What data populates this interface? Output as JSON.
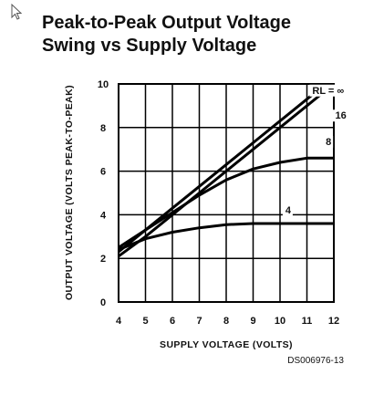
{
  "title_lines": [
    "Peak-to-Peak Output Voltage",
    "Swing vs Supply Voltage"
  ],
  "doc_code": "DS006976-13",
  "chart_data": {
    "type": "line",
    "title": "Peak-to-Peak Output Voltage Swing vs Supply Voltage",
    "xlabel": "SUPPLY VOLTAGE (VOLTS)",
    "ylabel": "OUTPUT VOLTAGE (VOLTS PEAK-TO-PEAK)",
    "xlim": [
      4,
      12
    ],
    "ylim": [
      0,
      10
    ],
    "x_ticks": [
      4,
      5,
      6,
      7,
      8,
      9,
      10,
      11,
      12
    ],
    "y_ticks": [
      0,
      2,
      4,
      6,
      8,
      10
    ],
    "grid": true,
    "series": [
      {
        "name": "RL = ∞",
        "label_text": "RL = ∞",
        "x": [
          4,
          5,
          6,
          7,
          8,
          9,
          10,
          11,
          12
        ],
        "y": [
          2.3,
          3.3,
          4.3,
          5.3,
          6.3,
          7.3,
          8.3,
          9.3,
          10.3
        ]
      },
      {
        "name": "16",
        "label_text": "16",
        "x": [
          4,
          5,
          6,
          7,
          8,
          9,
          10,
          11,
          12
        ],
        "y": [
          2.1,
          3.0,
          4.0,
          5.0,
          6.0,
          7.0,
          8.0,
          9.0,
          10.0
        ]
      },
      {
        "name": "8",
        "label_text": "8",
        "x": [
          4,
          5,
          6,
          7,
          8,
          9,
          10,
          11,
          12
        ],
        "y": [
          2.5,
          3.3,
          4.1,
          4.9,
          5.6,
          6.1,
          6.4,
          6.6,
          6.6
        ]
      },
      {
        "name": "4",
        "label_text": "4",
        "x": [
          4,
          5,
          6,
          7,
          8,
          9,
          10,
          11,
          12
        ],
        "y": [
          2.4,
          2.9,
          3.2,
          3.4,
          3.55,
          3.6,
          3.6,
          3.6,
          3.6
        ]
      }
    ]
  },
  "colors": {
    "line": "#000000",
    "grid": "#000000",
    "background": "#ffffff"
  },
  "icons": {
    "cursor": "mouse-pointer-icon"
  }
}
